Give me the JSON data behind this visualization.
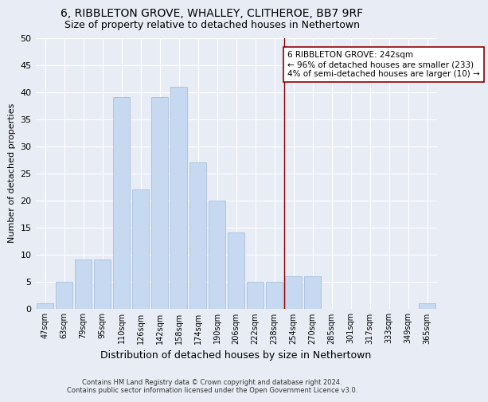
{
  "title1": "6, RIBBLETON GROVE, WHALLEY, CLITHEROE, BB7 9RF",
  "title2": "Size of property relative to detached houses in Nethertown",
  "xlabel": "Distribution of detached houses by size in Nethertown",
  "ylabel": "Number of detached properties",
  "footnote": "Contains HM Land Registry data © Crown copyright and database right 2024.\nContains public sector information licensed under the Open Government Licence v3.0.",
  "categories": [
    "47sqm",
    "63sqm",
    "79sqm",
    "95sqm",
    "110sqm",
    "126sqm",
    "142sqm",
    "158sqm",
    "174sqm",
    "190sqm",
    "206sqm",
    "222sqm",
    "238sqm",
    "254sqm",
    "270sqm",
    "285sqm",
    "301sqm",
    "317sqm",
    "333sqm",
    "349sqm",
    "365sqm"
  ],
  "values": [
    1,
    5,
    9,
    9,
    39,
    22,
    39,
    41,
    27,
    20,
    14,
    5,
    5,
    6,
    6,
    0,
    0,
    0,
    0,
    0,
    1
  ],
  "bar_color": "#c6d9f0",
  "bar_edge_color": "#a0b8d8",
  "vline_x": 12.5,
  "vline_color": "#8b0000",
  "annotation_text": "6 RIBBLETON GROVE: 242sqm\n← 96% of detached houses are smaller (233)\n4% of semi-detached houses are larger (10) →",
  "annotation_box_color": "white",
  "annotation_box_edge_color": "#8b0000",
  "ylim": [
    0,
    50
  ],
  "yticks": [
    0,
    5,
    10,
    15,
    20,
    25,
    30,
    35,
    40,
    45,
    50
  ],
  "bg_color": "#e8edf5",
  "plot_bg_color": "#e8edf5",
  "title1_fontsize": 10,
  "title2_fontsize": 9,
  "grid_color": "white",
  "annotation_fontsize": 7.5,
  "ylabel_fontsize": 8,
  "xlabel_fontsize": 9
}
